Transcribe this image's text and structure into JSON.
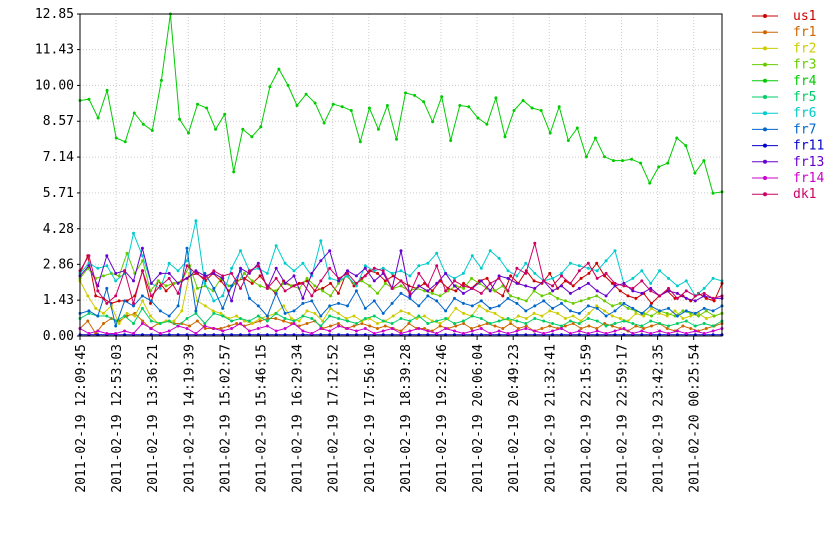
{
  "chart_data": {
    "type": "line",
    "title": "",
    "xlabel": "",
    "ylabel": "",
    "ylim": [
      0,
      12.85
    ],
    "yticks": [
      "0.00",
      "1.43",
      "2.86",
      "4.28",
      "5.71",
      "7.14",
      "8.57",
      "10.00",
      "11.43",
      "12.85"
    ],
    "xticks": [
      "2011-02-19 12:09:45",
      "2011-02-19 12:53:03",
      "2011-02-19 13:36:21",
      "2011-02-19 14:19:39",
      "2011-02-19 15:02:57",
      "2011-02-19 15:46:15",
      "2011-02-19 16:29:34",
      "2011-02-19 17:12:52",
      "2011-02-19 17:56:10",
      "2011-02-19 18:39:28",
      "2011-02-19 19:22:46",
      "2011-02-19 20:06:04",
      "2011-02-19 20:49:23",
      "2011-02-19 21:32:41",
      "2011-02-19 22:15:59",
      "2011-02-19 22:59:17",
      "2011-02-19 23:42:35",
      "2011-02-20 00:25:54"
    ],
    "grid": true,
    "legend_position": "right",
    "series": [
      {
        "name": "us1",
        "color": "#cc0000",
        "values": [
          2.5,
          3.2,
          1.6,
          1.5,
          1.3,
          1.4,
          1.4,
          1.6,
          2.6,
          1.3,
          2.2,
          1.8,
          2.1,
          2.2,
          2.4,
          2.5,
          2.2,
          2.5,
          2.2,
          1.8,
          2.2,
          2.3,
          2.1,
          2.4,
          2.0,
          1.7,
          2.2,
          2.0,
          2.1,
          2.2,
          1.8,
          1.9,
          2.1,
          1.7,
          2.5,
          2.0,
          2.3,
          2.6,
          2.5,
          2.2,
          2.4,
          2.2,
          2.0,
          1.9,
          2.1,
          1.8,
          2.2,
          1.9,
          1.8,
          2.1,
          1.9,
          2.2,
          2.3,
          1.8,
          1.6,
          2.4,
          2.1,
          2.6,
          2.2,
          2.1,
          2.5,
          1.9,
          2.2,
          2.0,
          2.3,
          2.5,
          2.9,
          2.4,
          2.1,
          1.8,
          1.6,
          1.5,
          1.7,
          1.3,
          1.6,
          1.8,
          1.5,
          1.6,
          1.4,
          1.7,
          1.5,
          1.4,
          2.1
        ]
      },
      {
        "name": "fr1",
        "color": "#cc6600",
        "values": [
          0.3,
          0.6,
          0.1,
          0.5,
          0.7,
          0.6,
          0.8,
          0.9,
          0.6,
          0.3,
          0.5,
          0.6,
          0.5,
          0.5,
          0.4,
          0.6,
          0.3,
          0.3,
          0.3,
          0.4,
          0.5,
          0.4,
          0.5,
          0.6,
          0.7,
          0.7,
          0.6,
          0.5,
          0.4,
          0.5,
          0.6,
          0.3,
          0.4,
          0.5,
          0.3,
          0.4,
          0.5,
          0.4,
          0.3,
          0.4,
          0.3,
          0.2,
          0.5,
          0.3,
          0.3,
          0.2,
          0.4,
          0.3,
          0.4,
          0.5,
          0.3,
          0.4,
          0.5,
          0.4,
          0.3,
          0.5,
          0.3,
          0.4,
          0.2,
          0.3,
          0.4,
          0.3,
          0.4,
          0.5,
          0.3,
          0.4,
          0.3,
          0.5,
          0.4,
          0.3,
          0.2,
          0.4,
          0.3,
          0.4,
          0.5,
          0.3,
          0.2,
          0.4,
          0.3,
          0.2,
          0.3,
          0.4,
          0.5
        ]
      },
      {
        "name": "fr2",
        "color": "#cccc00",
        "values": [
          2.2,
          1.6,
          1.1,
          0.9,
          1.2,
          0.5,
          0.9,
          0.8,
          1.4,
          0.8,
          0.5,
          0.6,
          0.6,
          1.0,
          2.5,
          1.4,
          1.2,
          1.0,
          0.9,
          0.7,
          0.8,
          0.6,
          0.5,
          0.7,
          0.8,
          0.9,
          1.2,
          0.7,
          0.6,
          1.0,
          0.9,
          0.6,
          1.1,
          0.9,
          0.7,
          0.8,
          0.6,
          0.7,
          0.5,
          0.6,
          0.8,
          1.0,
          0.9,
          0.7,
          0.8,
          0.6,
          0.5,
          0.7,
          1.1,
          0.9,
          0.8,
          1.2,
          1.0,
          0.9,
          0.7,
          0.6,
          0.8,
          0.7,
          0.9,
          0.8,
          1.0,
          0.9,
          0.7,
          0.8,
          0.6,
          0.9,
          1.2,
          1.0,
          0.8,
          0.7,
          0.6,
          0.9,
          0.8,
          1.1,
          0.9,
          0.8,
          1.0,
          0.7,
          0.8,
          0.9,
          0.7,
          0.8,
          0.9
        ]
      },
      {
        "name": "fr3",
        "color": "#66cc00",
        "values": [
          2.3,
          2.7,
          2.3,
          2.4,
          2.5,
          2.4,
          3.3,
          2.5,
          3.0,
          1.8,
          2.2,
          2.0,
          2.1,
          2.2,
          2.8,
          1.9,
          2.0,
          1.8,
          2.3,
          2.0,
          2.1,
          2.5,
          2.2,
          2.0,
          1.9,
          1.8,
          2.1,
          2.0,
          1.9,
          2.3,
          2.0,
          1.8,
          1.6,
          2.1,
          2.4,
          2.1,
          2.2,
          2.0,
          1.7,
          2.1,
          1.9,
          2.0,
          1.8,
          1.9,
          1.8,
          1.7,
          1.6,
          1.8,
          2.0,
          1.9,
          2.3,
          2.1,
          1.9,
          1.8,
          2.0,
          1.6,
          1.5,
          1.4,
          1.8,
          1.6,
          1.7,
          1.5,
          1.4,
          1.3,
          1.4,
          1.5,
          1.6,
          1.4,
          1.2,
          1.3,
          1.1,
          1.0,
          0.9,
          0.8,
          1.0,
          0.9,
          0.8,
          1.0,
          0.9,
          0.8,
          1.0,
          0.8,
          0.9
        ]
      },
      {
        "name": "fr4",
        "color": "#00cc00",
        "values": [
          9.4,
          9.45,
          8.7,
          9.8,
          7.9,
          7.75,
          8.9,
          8.45,
          8.2,
          10.2,
          12.85,
          8.65,
          8.1,
          9.25,
          9.1,
          8.25,
          8.85,
          6.55,
          8.25,
          7.95,
          8.35,
          9.95,
          10.65,
          10.0,
          9.2,
          9.65,
          9.3,
          8.5,
          9.25,
          9.15,
          9.0,
          7.75,
          9.1,
          8.25,
          9.2,
          7.85,
          9.7,
          9.6,
          9.35,
          8.55,
          9.55,
          7.8,
          9.2,
          9.15,
          8.7,
          8.45,
          9.5,
          7.95,
          9.0,
          9.4,
          9.1,
          9.0,
          8.1,
          9.15,
          7.8,
          8.3,
          7.15,
          7.9,
          7.15,
          7.0,
          7.0,
          7.05,
          6.9,
          6.1,
          6.75,
          6.9,
          7.9,
          7.6,
          6.5,
          7.0,
          5.7,
          5.75
        ]
      },
      {
        "name": "fr5",
        "color": "#00cc66",
        "values": [
          0.7,
          0.9,
          0.8,
          0.8,
          0.6,
          0.8,
          0.5,
          1.1,
          0.6,
          0.5,
          0.6,
          0.4,
          0.7,
          0.9,
          0.5,
          0.9,
          0.8,
          0.6,
          0.7,
          0.6,
          0.8,
          0.6,
          0.9,
          0.7,
          0.6,
          0.8,
          0.7,
          0.4,
          0.8,
          0.7,
          0.6,
          0.5,
          0.7,
          0.8,
          0.6,
          0.5,
          0.7,
          0.6,
          0.8,
          0.5,
          0.6,
          0.7,
          0.5,
          0.6,
          0.8,
          0.7,
          0.5,
          0.6,
          0.7,
          0.6,
          0.5,
          0.7,
          0.6,
          0.5,
          0.4,
          0.6,
          0.5,
          0.7,
          0.6,
          0.4,
          0.5,
          0.6,
          0.5,
          0.4,
          0.6,
          0.5,
          0.4,
          0.5,
          0.6,
          0.4,
          0.5,
          0.4,
          0.6
        ]
      },
      {
        "name": "fr6",
        "color": "#00cccc",
        "values": [
          2.5,
          2.9,
          2.7,
          2.8,
          2.2,
          2.5,
          4.1,
          3.2,
          2.1,
          1.9,
          2.9,
          2.6,
          3.0,
          4.6,
          2.1,
          1.4,
          1.6,
          2.7,
          3.4,
          2.6,
          2.7,
          2.5,
          3.6,
          2.9,
          2.6,
          2.9,
          2.4,
          3.8,
          2.3,
          2.2,
          2.4,
          2.0,
          2.8,
          2.6,
          2.7,
          2.5,
          2.6,
          2.4,
          2.8,
          2.9,
          3.3,
          2.5,
          2.3,
          2.5,
          3.2,
          2.7,
          3.4,
          3.1,
          2.6,
          2.4,
          2.9,
          2.5,
          2.2,
          2.3,
          2.5,
          2.9,
          2.8,
          2.7,
          2.6,
          3.0,
          3.4,
          2.1,
          2.3,
          2.6,
          2.1,
          2.6,
          2.3,
          2.0,
          2.2,
          1.6,
          1.9,
          2.3,
          2.2
        ]
      },
      {
        "name": "fr7",
        "color": "#0066cc",
        "values": [
          0.9,
          1.0,
          0.8,
          1.9,
          0.4,
          1.4,
          1.2,
          1.6,
          1.4,
          1.0,
          0.8,
          1.2,
          3.5,
          1.0,
          2.5,
          1.9,
          1.1,
          2.0,
          2.6,
          1.5,
          1.2,
          0.8,
          1.7,
          0.9,
          1.0,
          1.3,
          1.4,
          0.8,
          1.2,
          1.3,
          1.2,
          1.8,
          1.1,
          1.4,
          0.9,
          1.3,
          1.7,
          1.5,
          1.2,
          1.6,
          1.4,
          1.0,
          1.5,
          1.3,
          1.2,
          1.4,
          1.1,
          1.2,
          1.5,
          1.3,
          1.0,
          1.2,
          1.4,
          1.1,
          1.3,
          1.0,
          0.9,
          1.2,
          1.1,
          0.8,
          1.0,
          1.3,
          1.1,
          0.9,
          1.2,
          1.0,
          1.1,
          0.8,
          1.0,
          0.9,
          1.1,
          1.0,
          1.2
        ]
      },
      {
        "name": "fr11",
        "color": "#0000cc",
        "values": [
          0.05,
          0.05,
          0.05,
          0.05,
          0.05,
          0.05,
          0.05,
          0.05,
          0.05,
          0.05,
          0.05,
          0.05,
          0.05,
          0.05,
          0.05,
          0.05,
          0.05,
          0.05,
          0.05,
          0.05,
          0.05,
          0.05,
          0.05,
          0.05,
          0.05,
          0.05,
          0.05,
          0.05,
          0.05,
          0.05,
          0.05,
          0.05,
          0.05,
          0.05,
          0.05,
          0.05,
          0.05,
          0.05,
          0.05,
          0.05,
          0.05,
          0.05,
          0.05,
          0.05,
          0.05,
          0.05,
          0.05,
          0.05,
          0.05,
          0.05,
          0.05,
          0.05,
          0.05,
          0.05,
          0.05,
          0.05,
          0.05,
          0.05,
          0.05,
          0.05,
          0.05,
          0.05,
          0.05,
          0.05,
          0.05,
          0.05,
          0.05,
          0.05,
          0.05,
          0.05,
          0.05,
          0.05,
          0.05
        ]
      },
      {
        "name": "fr13",
        "color": "#6600cc",
        "values": [
          2.4,
          2.8,
          2.0,
          3.2,
          2.5,
          2.6,
          2.2,
          3.5,
          2.1,
          2.5,
          2.5,
          2.1,
          2.3,
          2.6,
          2.4,
          2.5,
          2.3,
          1.4,
          2.7,
          2.5,
          2.9,
          1.9,
          2.7,
          2.1,
          2.4,
          1.5,
          2.5,
          3.0,
          3.4,
          2.2,
          2.6,
          2.4,
          2.7,
          2.2,
          2.5,
          1.9,
          3.4,
          1.6,
          2.0,
          1.8,
          2.1,
          2.5,
          2.0,
          1.7,
          1.9,
          2.2,
          1.8,
          2.4,
          2.3,
          2.1,
          2.0,
          1.9,
          2.2,
          1.8,
          2.0,
          1.7,
          1.9,
          2.1,
          1.8,
          1.6,
          2.0,
          2.1,
          1.8,
          1.7,
          1.9,
          1.6,
          1.8,
          1.7,
          1.5,
          1.4,
          1.6,
          1.5,
          1.5
        ]
      },
      {
        "name": "fr14",
        "color": "#cc00cc",
        "values": [
          0.3,
          0.1,
          0.2,
          0.1,
          0.1,
          0.2,
          0.1,
          0.5,
          0.3,
          0.1,
          0.2,
          0.4,
          0.3,
          0.1,
          0.4,
          0.3,
          0.2,
          0.3,
          0.5,
          0.2,
          0.3,
          0.4,
          0.2,
          0.3,
          0.5,
          0.2,
          0.1,
          0.3,
          0.2,
          0.4,
          0.3,
          0.2,
          0.3,
          0.1,
          0.2,
          0.3,
          0.1,
          0.2,
          0.3,
          0.2,
          0.1,
          0.3,
          0.2,
          0.1,
          0.2,
          0.3,
          0.1,
          0.2,
          0.1,
          0.2,
          0.3,
          0.2,
          0.1,
          0.2,
          0.3,
          0.1,
          0.2,
          0.1,
          0.2,
          0.1,
          0.2,
          0.3,
          0.1,
          0.2,
          0.1,
          0.2,
          0.1,
          0.2,
          0.1,
          0.2,
          0.1,
          0.2,
          0.3
        ]
      },
      {
        "name": "dk1",
        "color": "#cc0066",
        "values": [
          2.6,
          3.2,
          1.8,
          1.3,
          1.6,
          2.6,
          1.3,
          2.6,
          1.6,
          2.0,
          2.3,
          1.7,
          2.8,
          2.5,
          2.3,
          2.6,
          2.4,
          2.5,
          1.9,
          2.6,
          2.8,
          1.9,
          2.3,
          1.8,
          2.0,
          2.1,
          1.6,
          2.2,
          2.7,
          2.3,
          2.5,
          2.1,
          2.4,
          2.7,
          2.6,
          1.9,
          2.2,
          1.7,
          2.5,
          2.0,
          2.8,
          1.8,
          2.2,
          2.0,
          1.9,
          1.7,
          2.1,
          2.3,
          1.8,
          2.7,
          2.5,
          3.7,
          2.2,
          2.0,
          2.4,
          2.1,
          2.6,
          2.9,
          2.3,
          2.5,
          2.1,
          2.0,
          1.9,
          2.2,
          1.8,
          1.6,
          1.9,
          1.5,
          1.8,
          1.6,
          1.7,
          1.5,
          1.6
        ]
      }
    ]
  }
}
